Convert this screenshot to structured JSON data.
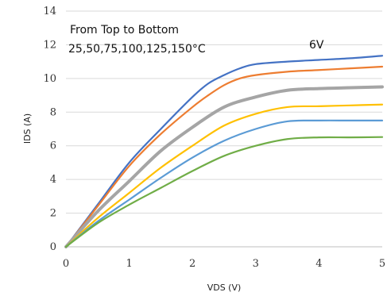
{
  "chart_data": {
    "type": "line",
    "title": "",
    "xlabel": "VDS (V)",
    "ylabel": "IDS (A)",
    "xlim": [
      0,
      5
    ],
    "ylim": [
      0,
      14
    ],
    "xticks": [
      0,
      1,
      2,
      3,
      4,
      5
    ],
    "yticks": [
      0,
      2,
      4,
      6,
      8,
      10,
      12,
      14
    ],
    "grid": "horizontal",
    "legend": "none",
    "annotations": [
      {
        "text": "From Top  to  Bottom"
      },
      {
        "text": "25,50,75,100,125,150°C"
      },
      {
        "text": "6V"
      }
    ],
    "series": [
      {
        "color": "#4472c4",
        "points": [
          [
            0,
            0
          ],
          [
            0.5,
            2.5
          ],
          [
            1,
            5
          ],
          [
            1.5,
            7
          ],
          [
            2,
            8.9
          ],
          [
            2.25,
            9.7
          ],
          [
            2.5,
            10.2
          ],
          [
            2.75,
            10.6
          ],
          [
            3,
            10.85
          ],
          [
            3.5,
            11
          ],
          [
            4,
            11.1
          ],
          [
            4.5,
            11.2
          ],
          [
            5,
            11.35
          ]
        ]
      },
      {
        "color": "#ed7d31",
        "points": [
          [
            0,
            0
          ],
          [
            0.5,
            2.4
          ],
          [
            1,
            4.8
          ],
          [
            1.5,
            6.7
          ],
          [
            2,
            8.3
          ],
          [
            2.25,
            9
          ],
          [
            2.5,
            9.6
          ],
          [
            2.75,
            10
          ],
          [
            3,
            10.2
          ],
          [
            3.5,
            10.4
          ],
          [
            4,
            10.5
          ],
          [
            4.5,
            10.6
          ],
          [
            5,
            10.7
          ]
        ]
      },
      {
        "color": "#a5a5a5",
        "points": [
          [
            0,
            0
          ],
          [
            0.5,
            2.1
          ],
          [
            1,
            3.9
          ],
          [
            1.5,
            5.7
          ],
          [
            2,
            7.1
          ],
          [
            2.5,
            8.3
          ],
          [
            3,
            8.9
          ],
          [
            3.5,
            9.3
          ],
          [
            4,
            9.4
          ],
          [
            4.5,
            9.45
          ],
          [
            5,
            9.5
          ]
        ]
      },
      {
        "color": "#ffc000",
        "points": [
          [
            0,
            0
          ],
          [
            0.5,
            1.7
          ],
          [
            1,
            3.2
          ],
          [
            1.5,
            4.7
          ],
          [
            2,
            6
          ],
          [
            2.5,
            7.2
          ],
          [
            3,
            7.9
          ],
          [
            3.5,
            8.3
          ],
          [
            4,
            8.35
          ],
          [
            4.5,
            8.4
          ],
          [
            5,
            8.45
          ]
        ]
      },
      {
        "color": "#5b9bd5",
        "points": [
          [
            0,
            0
          ],
          [
            0.5,
            1.5
          ],
          [
            1,
            2.8
          ],
          [
            1.5,
            4.1
          ],
          [
            2,
            5.3
          ],
          [
            2.5,
            6.3
          ],
          [
            3,
            7
          ],
          [
            3.5,
            7.45
          ],
          [
            4,
            7.5
          ],
          [
            4.5,
            7.5
          ],
          [
            5,
            7.5
          ]
        ]
      },
      {
        "color": "#70ad47",
        "points": [
          [
            0,
            0
          ],
          [
            0.5,
            1.4
          ],
          [
            1,
            2.5
          ],
          [
            1.5,
            3.5
          ],
          [
            2,
            4.5
          ],
          [
            2.5,
            5.4
          ],
          [
            3,
            6
          ],
          [
            3.5,
            6.4
          ],
          [
            4,
            6.5
          ],
          [
            4.5,
            6.5
          ],
          [
            5,
            6.52
          ]
        ]
      }
    ]
  }
}
